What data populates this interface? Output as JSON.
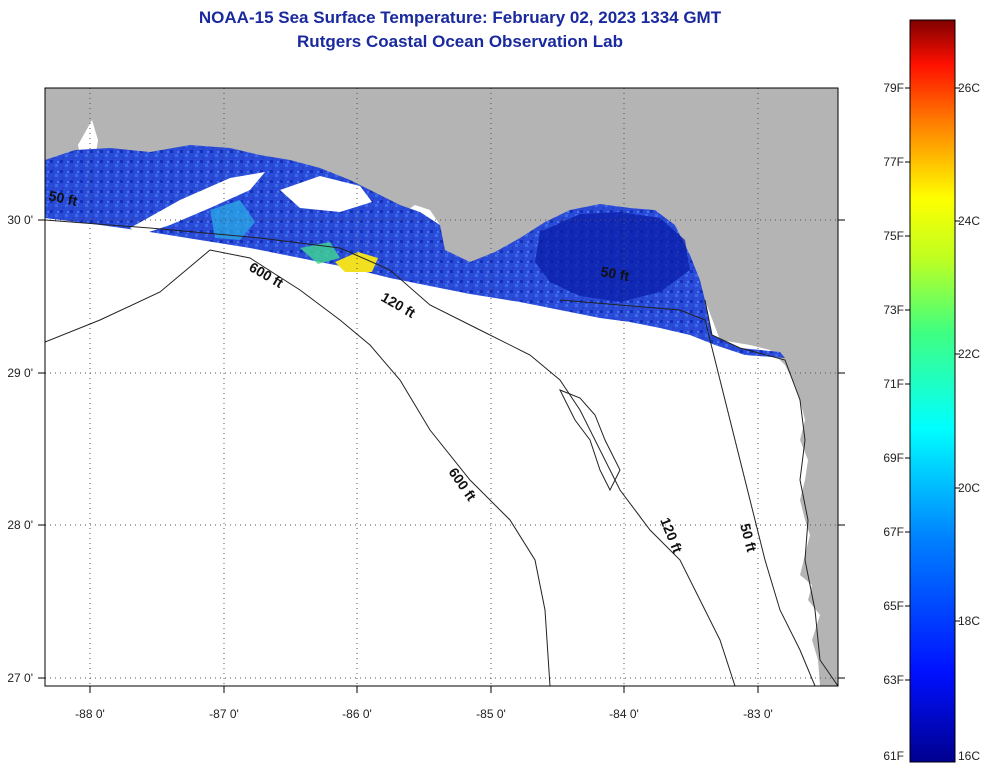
{
  "title": {
    "line1": "NOAA-15 Sea Surface Temperature:  February 02, 2023 1334 GMT",
    "line2": "Rutgers Coastal Ocean Observation Lab"
  },
  "map": {
    "lon_ticks": [
      "-88 0'",
      "-87 0'",
      "-86 0'",
      "-85 0'",
      "-84 0'",
      "-83 0'"
    ],
    "lat_ticks": [
      "30 0'",
      "29 0'",
      "28 0'",
      "27 0'"
    ],
    "contours": {
      "c50a": "50 ft",
      "c600a": "600 ft",
      "c120a": "120 ft",
      "c50b": "50 ft",
      "c600b": "600 ft",
      "c120b": "120 ft",
      "c50c": "50 ft"
    },
    "colors": {
      "land": "#b4b4b4",
      "ocean": "#ffffff",
      "sst_low": "#1a3acc"
    }
  },
  "colorbar": {
    "fahrenheit": [
      "79F",
      "77F",
      "75F",
      "73F",
      "71F",
      "69F",
      "67F",
      "65F",
      "63F",
      "61F"
    ],
    "celsius": [
      "26C",
      "24C",
      "22C",
      "20C",
      "18C",
      "16C"
    ]
  }
}
